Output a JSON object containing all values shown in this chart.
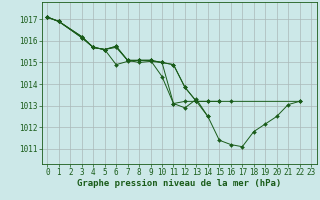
{
  "background_color": "#cce8e8",
  "grid_color": "#aab8b8",
  "line_color": "#1a5c1a",
  "xlabel": "Graphe pression niveau de la mer (hPa)",
  "xlabel_fontsize": 6.5,
  "tick_fontsize": 5.5,
  "yticks": [
    1011,
    1012,
    1013,
    1014,
    1015,
    1016,
    1017
  ],
  "xticks": [
    0,
    1,
    2,
    3,
    4,
    5,
    6,
    7,
    8,
    9,
    10,
    11,
    12,
    13,
    14,
    15,
    16,
    17,
    18,
    19,
    20,
    21,
    22,
    23
  ],
  "xlim": [
    -0.5,
    23.5
  ],
  "ylim": [
    1010.3,
    1017.8
  ],
  "series": [
    {
      "x": [
        0,
        1,
        3,
        4,
        5,
        6,
        7,
        8,
        9,
        10,
        11,
        12,
        13,
        14
      ],
      "y": [
        1017.1,
        1016.9,
        1016.2,
        1015.7,
        1015.6,
        1014.9,
        1015.05,
        1015.1,
        1015.1,
        1014.35,
        1013.1,
        1013.2,
        1013.2,
        1012.5
      ]
    },
    {
      "x": [
        0,
        1,
        3,
        4,
        5,
        6,
        7,
        8,
        9,
        10,
        11,
        12,
        13,
        14,
        15
      ],
      "y": [
        1017.1,
        1016.9,
        1016.15,
        1015.7,
        1015.6,
        1015.75,
        1015.1,
        1015.1,
        1015.1,
        1015.0,
        1014.9,
        1013.85,
        1013.2,
        1013.2,
        1013.2
      ]
    },
    {
      "x": [
        0,
        1,
        3,
        4,
        5,
        6,
        7,
        8,
        9,
        10,
        11,
        12,
        13,
        14,
        15,
        16,
        22
      ],
      "y": [
        1017.1,
        1016.9,
        1016.15,
        1015.7,
        1015.6,
        1015.75,
        1015.1,
        1015.1,
        1015.1,
        1015.0,
        1014.9,
        1013.85,
        1013.2,
        1013.2,
        1013.2,
        1013.2,
        1013.2
      ]
    },
    {
      "x": [
        0,
        1,
        3,
        4,
        5,
        6,
        7,
        8,
        9,
        10,
        11,
        12,
        13,
        14,
        15,
        16,
        17,
        18,
        19,
        20,
        21,
        22
      ],
      "y": [
        1017.1,
        1016.9,
        1016.2,
        1015.7,
        1015.6,
        1015.7,
        1015.1,
        1015.0,
        1015.05,
        1015.0,
        1013.1,
        1012.9,
        1013.3,
        1012.5,
        1011.4,
        1011.2,
        1011.1,
        1011.8,
        1012.15,
        1012.5,
        1013.05,
        1013.2
      ]
    }
  ]
}
